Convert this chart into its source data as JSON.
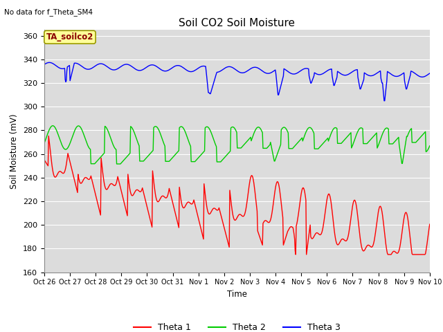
{
  "title": "Soil CO2 Soil Moisture",
  "xlabel": "Time",
  "ylabel": "Soil Moisture (mV)",
  "no_data_text": "No data for f_Theta_SM4",
  "annotation_label": "TA_soilco2",
  "ylim": [
    160,
    365
  ],
  "yticks": [
    160,
    180,
    200,
    220,
    240,
    260,
    280,
    300,
    320,
    340,
    360
  ],
  "xtick_labels": [
    "Oct 26",
    "Oct 27",
    "Oct 28",
    "Oct 29",
    "Oct 30",
    "Oct 31",
    "Nov 1",
    "Nov 2",
    "Nov 3",
    "Nov 4",
    "Nov 5",
    "Nov 6",
    "Nov 7",
    "Nov 8",
    "Nov 9",
    "Nov 10"
  ],
  "bg_color": "#dcdcdc",
  "grid_color": "#ffffff",
  "line_colors": {
    "theta1": "#ff0000",
    "theta2": "#00cc00",
    "theta3": "#0000ff"
  },
  "legend_labels": [
    "Theta 1",
    "Theta 2",
    "Theta 3"
  ],
  "annotation_bg": "#ffff99",
  "annotation_text_color": "#8b0000",
  "annotation_edge_color": "#999900"
}
